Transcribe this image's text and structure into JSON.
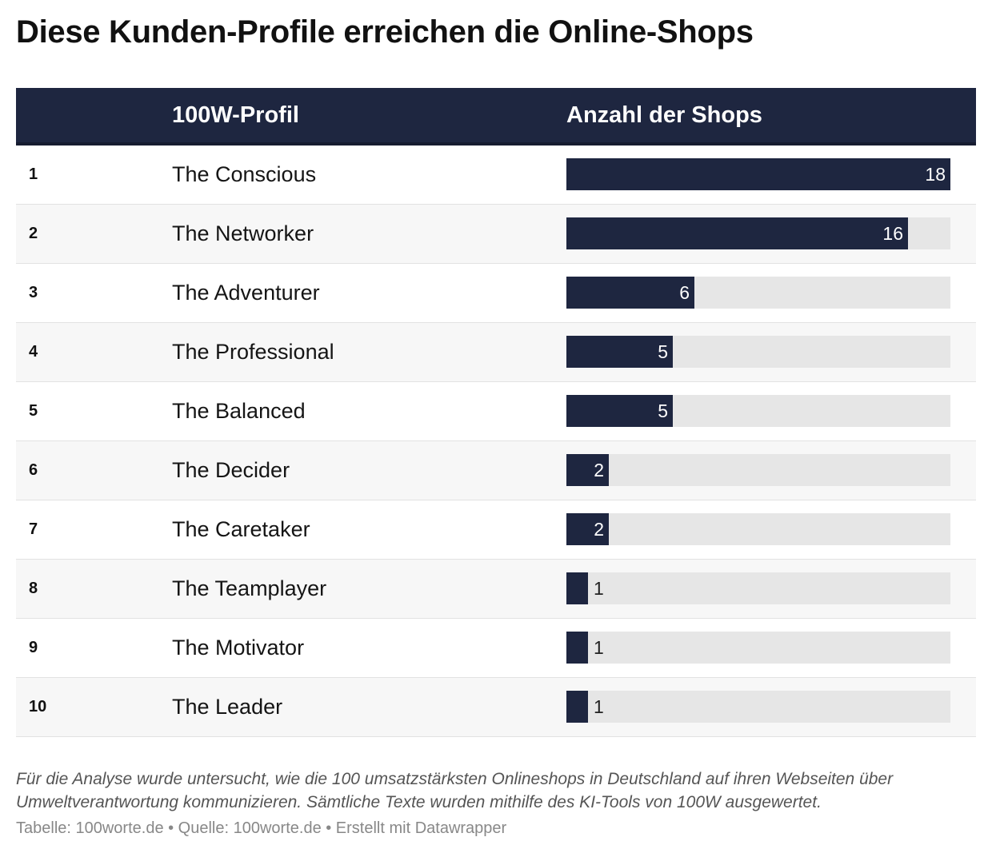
{
  "title": "Diese Kunden-Profile erreichen die Online-Shops",
  "columns": {
    "profil": "100W-Profil",
    "anzahl": "Anzahl der Shops"
  },
  "colors": {
    "bar": "#1e2640",
    "track": "#e6e6e6",
    "header_bg": "#1e2640"
  },
  "chart_data": {
    "type": "bar",
    "orientation": "horizontal",
    "categories": [
      "The Conscious",
      "The Networker",
      "The Adventurer",
      "The Professional",
      "The Balanced",
      "The Decider",
      "The Caretaker",
      "The Teamplayer",
      "The Motivator",
      "The Leader"
    ],
    "ranks": [
      "1",
      "2",
      "3",
      "4",
      "5",
      "6",
      "7",
      "8",
      "9",
      "10"
    ],
    "values": [
      18,
      16,
      6,
      5,
      5,
      2,
      2,
      1,
      1,
      1
    ],
    "xlim": [
      0,
      18
    ]
  },
  "note": "Für die Analyse wurde untersucht, wie die 100 umsatzstärksten Onlineshops in Deutschland auf ihren Webseiten über Umweltverantwortung kommunizieren. Sämtliche Texte wurden mithilfe des KI-Tools von 100W ausgewertet.",
  "credits": "Tabelle: 100worte.de • Quelle: 100worte.de • Erstellt mit Datawrapper"
}
